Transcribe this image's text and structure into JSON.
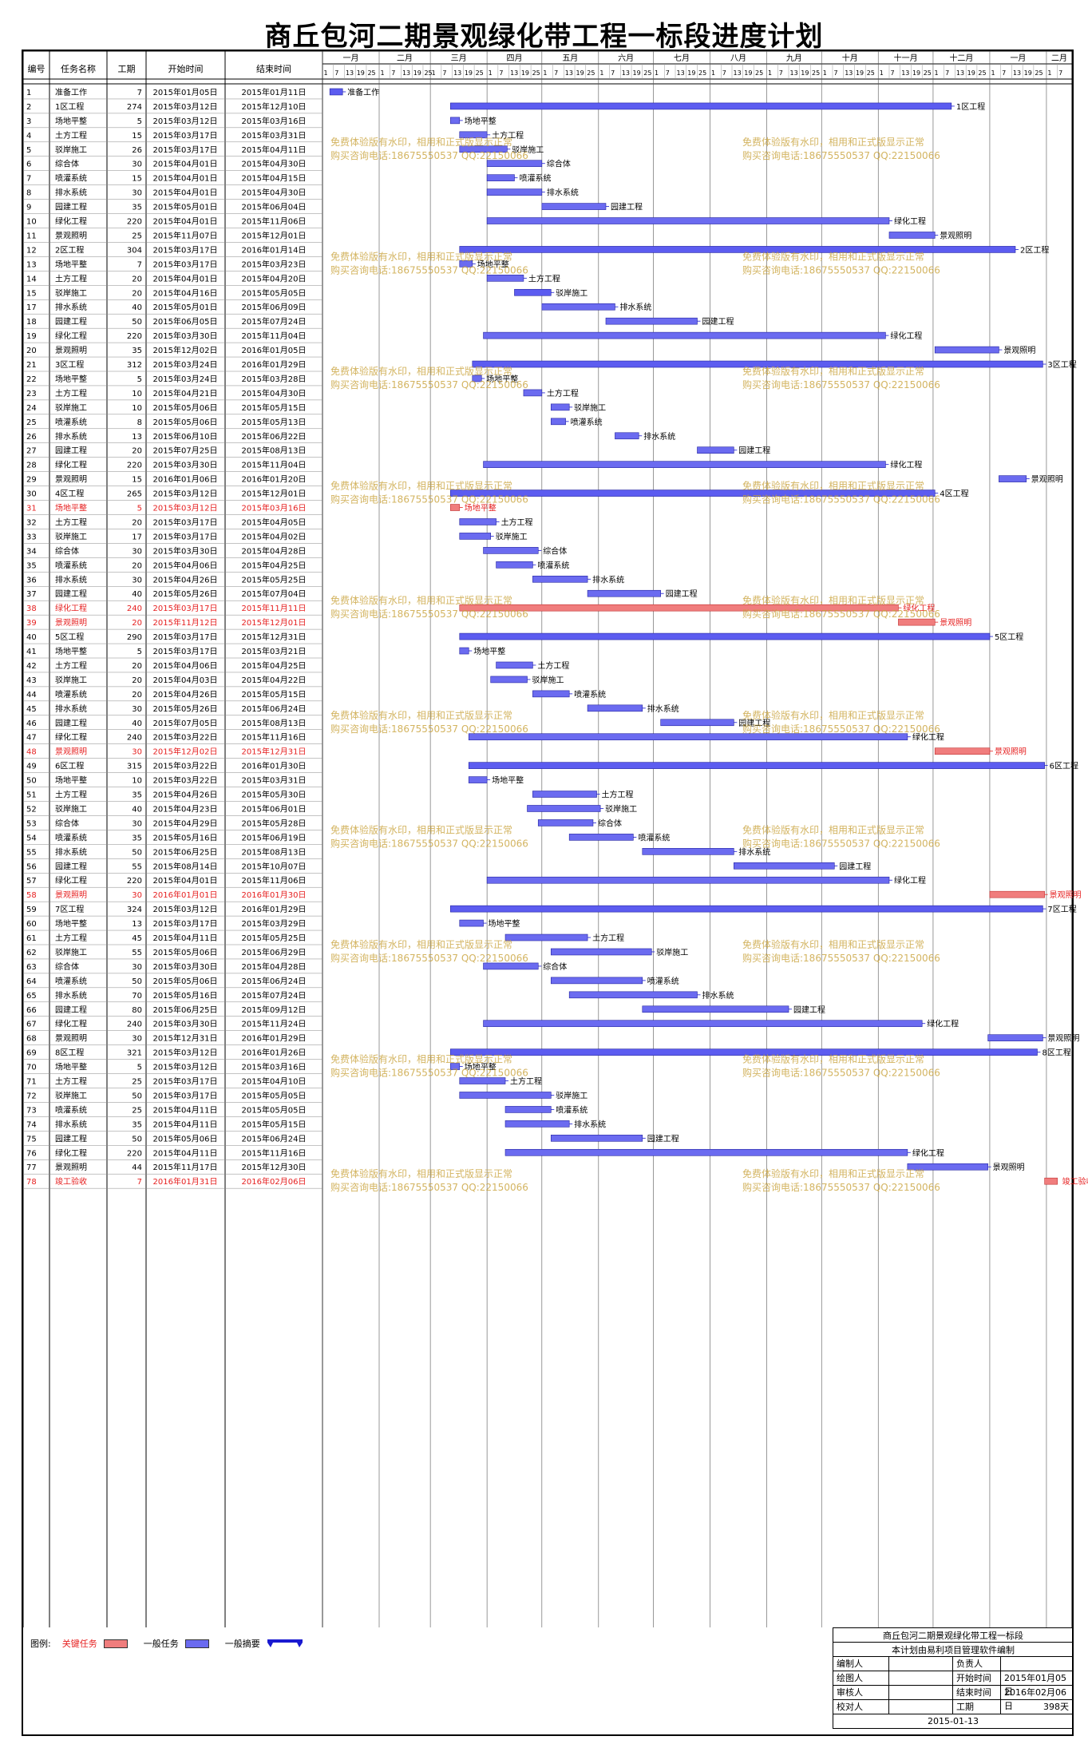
{
  "title": "商丘包河二期景观绿化带工程一标段进度计划",
  "headers": {
    "id": "编号",
    "name": "任务名称",
    "dur": "工期",
    "start": "开始时间",
    "end": "结束时间"
  },
  "timeline": {
    "months": [
      "一月",
      "二月",
      "三月",
      "四月",
      "五月",
      "六月",
      "七月",
      "八月",
      "九月",
      "十月",
      "十一月",
      "十二月",
      "一月",
      "二月"
    ],
    "day_ticks": [
      "1",
      "7",
      "13",
      "19",
      "25"
    ],
    "start_date": "2015-01-01",
    "end_date": "2016-02-15"
  },
  "colors": {
    "critical": "#f07d7d",
    "normal": "#6b6bf0",
    "summary": "#5c5cf0",
    "link_normal": "#1a1ad0",
    "link_critical": "#e62020",
    "critical_text": "#e62020",
    "watermark": "#c9a23a"
  },
  "watermark": {
    "line1": "免费体验版有水印，相用和正式版显示正常",
    "line2": "购买咨询电话:18675550537 QQ:22150066"
  },
  "legend": {
    "label": "图例:",
    "critical": "关键任务",
    "normal": "一般任务",
    "summary": "一般摘要"
  },
  "info": {
    "project": "商丘包河二期景观绿化带工程一标段",
    "software": "本计划由易利项目管理软件编制",
    "editor_label": "编制人",
    "editor": "",
    "owner_label": "负责人",
    "owner": "",
    "drawer_label": "绘图人",
    "drawer": "",
    "start_label": "开始时间",
    "start": "2015年01月05日",
    "reviewer_label": "审核人",
    "reviewer": "",
    "end_label": "结束时间",
    "end": "2016年02月06日",
    "checker_label": "校对人",
    "checker": "",
    "duration_label": "工期",
    "duration": "398天",
    "date": "2015-01-13"
  },
  "chart_data": {
    "type": "gantt",
    "title": "商丘包河二期景观绿化带工程一标段进度计划",
    "tasks": [
      {
        "id": 1,
        "name": "准备工作",
        "dur": 7,
        "start": "2015年01月05日",
        "end": "2015年01月11日",
        "kind": "summary"
      },
      {
        "id": 2,
        "name": "1区工程",
        "dur": 274,
        "start": "2015年03月12日",
        "end": "2015年12月10日",
        "kind": "summary"
      },
      {
        "id": 3,
        "name": "场地平整",
        "dur": 5,
        "start": "2015年03月12日",
        "end": "2015年03月16日",
        "kind": "normal"
      },
      {
        "id": 4,
        "name": "土方工程",
        "dur": 15,
        "start": "2015年03月17日",
        "end": "2015年03月31日",
        "kind": "normal"
      },
      {
        "id": 5,
        "name": "驳岸施工",
        "dur": 26,
        "start": "2015年03月17日",
        "end": "2015年04月11日",
        "kind": "normal"
      },
      {
        "id": 6,
        "name": "综合体",
        "dur": 30,
        "start": "2015年04月01日",
        "end": "2015年04月30日",
        "kind": "normal"
      },
      {
        "id": 7,
        "name": "喷灌系统",
        "dur": 15,
        "start": "2015年04月01日",
        "end": "2015年04月15日",
        "kind": "normal"
      },
      {
        "id": 8,
        "name": "排水系统",
        "dur": 30,
        "start": "2015年04月01日",
        "end": "2015年04月30日",
        "kind": "normal"
      },
      {
        "id": 9,
        "name": "园建工程",
        "dur": 35,
        "start": "2015年05月01日",
        "end": "2015年06月04日",
        "kind": "normal"
      },
      {
        "id": 10,
        "name": "绿化工程",
        "dur": 220,
        "start": "2015年04月01日",
        "end": "2015年11月06日",
        "kind": "normal"
      },
      {
        "id": 11,
        "name": "景观照明",
        "dur": 25,
        "start": "2015年11月07日",
        "end": "2015年12月01日",
        "kind": "normal"
      },
      {
        "id": 12,
        "name": "2区工程",
        "dur": 304,
        "start": "2015年03月17日",
        "end": "2016年01月14日",
        "kind": "summary"
      },
      {
        "id": 13,
        "name": "场地平整",
        "dur": 7,
        "start": "2015年03月17日",
        "end": "2015年03月23日",
        "kind": "normal"
      },
      {
        "id": 14,
        "name": "土方工程",
        "dur": 20,
        "start": "2015年04月01日",
        "end": "2015年04月20日",
        "kind": "normal"
      },
      {
        "id": 15,
        "name": "驳岸施工",
        "dur": 20,
        "start": "2015年04月16日",
        "end": "2015年05月05日",
        "kind": "summary"
      },
      {
        "id": 17,
        "name": "排水系统",
        "dur": 40,
        "start": "2015年05月01日",
        "end": "2015年06月09日",
        "kind": "normal"
      },
      {
        "id": 18,
        "name": "园建工程",
        "dur": 50,
        "start": "2015年06月05日",
        "end": "2015年07月24日",
        "kind": "normal"
      },
      {
        "id": 19,
        "name": "绿化工程",
        "dur": 220,
        "start": "2015年03月30日",
        "end": "2015年11月04日",
        "kind": "normal"
      },
      {
        "id": 20,
        "name": "景观照明",
        "dur": 35,
        "start": "2015年12月02日",
        "end": "2016年01月05日",
        "kind": "normal"
      },
      {
        "id": 21,
        "name": "3区工程",
        "dur": 312,
        "start": "2015年03月24日",
        "end": "2016年01月29日",
        "kind": "summary"
      },
      {
        "id": 22,
        "name": "场地平整",
        "dur": 5,
        "start": "2015年03月24日",
        "end": "2015年03月28日",
        "kind": "normal"
      },
      {
        "id": 23,
        "name": "土方工程",
        "dur": 10,
        "start": "2015年04月21日",
        "end": "2015年04月30日",
        "kind": "normal"
      },
      {
        "id": 24,
        "name": "驳岸施工",
        "dur": 10,
        "start": "2015年05月06日",
        "end": "2015年05月15日",
        "kind": "normal"
      },
      {
        "id": 25,
        "name": "喷灌系统",
        "dur": 8,
        "start": "2015年05月06日",
        "end": "2015年05月13日",
        "kind": "normal"
      },
      {
        "id": 26,
        "name": "排水系统",
        "dur": 13,
        "start": "2015年06月10日",
        "end": "2015年06月22日",
        "kind": "normal"
      },
      {
        "id": 27,
        "name": "园建工程",
        "dur": 20,
        "start": "2015年07月25日",
        "end": "2015年08月13日",
        "kind": "normal"
      },
      {
        "id": 28,
        "name": "绿化工程",
        "dur": 220,
        "start": "2015年03月30日",
        "end": "2015年11月04日",
        "kind": "normal"
      },
      {
        "id": 29,
        "name": "景观照明",
        "dur": 15,
        "start": "2016年01月06日",
        "end": "2016年01月20日",
        "kind": "normal"
      },
      {
        "id": 30,
        "name": "4区工程",
        "dur": 265,
        "start": "2015年03月12日",
        "end": "2015年12月01日",
        "kind": "summary"
      },
      {
        "id": 31,
        "name": "场地平整",
        "dur": 5,
        "start": "2015年03月12日",
        "end": "2015年03月16日",
        "kind": "critical"
      },
      {
        "id": 32,
        "name": "土方工程",
        "dur": 20,
        "start": "2015年03月17日",
        "end": "2015年04月05日",
        "kind": "normal"
      },
      {
        "id": 33,
        "name": "驳岸施工",
        "dur": 17,
        "start": "2015年03月17日",
        "end": "2015年04月02日",
        "kind": "normal"
      },
      {
        "id": 34,
        "name": "综合体",
        "dur": 30,
        "start": "2015年03月30日",
        "end": "2015年04月28日",
        "kind": "normal"
      },
      {
        "id": 35,
        "name": "喷灌系统",
        "dur": 20,
        "start": "2015年04月06日",
        "end": "2015年04月25日",
        "kind": "normal"
      },
      {
        "id": 36,
        "name": "排水系统",
        "dur": 30,
        "start": "2015年04月26日",
        "end": "2015年05月25日",
        "kind": "normal"
      },
      {
        "id": 37,
        "name": "园建工程",
        "dur": 40,
        "start": "2015年05月26日",
        "end": "2015年07月04日",
        "kind": "normal"
      },
      {
        "id": 38,
        "name": "绿化工程",
        "dur": 240,
        "start": "2015年03月17日",
        "end": "2015年11月11日",
        "kind": "critical"
      },
      {
        "id": 39,
        "name": "景观照明",
        "dur": 20,
        "start": "2015年11月12日",
        "end": "2015年12月01日",
        "kind": "critical"
      },
      {
        "id": 40,
        "name": "5区工程",
        "dur": 290,
        "start": "2015年03月17日",
        "end": "2015年12月31日",
        "kind": "summary"
      },
      {
        "id": 41,
        "name": "场地平整",
        "dur": 5,
        "start": "2015年03月17日",
        "end": "2015年03月21日",
        "kind": "normal"
      },
      {
        "id": 42,
        "name": "土方工程",
        "dur": 20,
        "start": "2015年04月06日",
        "end": "2015年04月25日",
        "kind": "normal"
      },
      {
        "id": 43,
        "name": "驳岸施工",
        "dur": 20,
        "start": "2015年04月03日",
        "end": "2015年04月22日",
        "kind": "normal"
      },
      {
        "id": 44,
        "name": "喷灌系统",
        "dur": 20,
        "start": "2015年04月26日",
        "end": "2015年05月15日",
        "kind": "normal"
      },
      {
        "id": 45,
        "name": "排水系统",
        "dur": 30,
        "start": "2015年05月26日",
        "end": "2015年06月24日",
        "kind": "normal"
      },
      {
        "id": 46,
        "name": "园建工程",
        "dur": 40,
        "start": "2015年07月05日",
        "end": "2015年08月13日",
        "kind": "normal"
      },
      {
        "id": 47,
        "name": "绿化工程",
        "dur": 240,
        "start": "2015年03月22日",
        "end": "2015年11月16日",
        "kind": "normal"
      },
      {
        "id": 48,
        "name": "景观照明",
        "dur": 30,
        "start": "2015年12月02日",
        "end": "2015年12月31日",
        "kind": "critical"
      },
      {
        "id": 49,
        "name": "6区工程",
        "dur": 315,
        "start": "2015年03月22日",
        "end": "2016年01月30日",
        "kind": "summary"
      },
      {
        "id": 50,
        "name": "场地平整",
        "dur": 10,
        "start": "2015年03月22日",
        "end": "2015年03月31日",
        "kind": "normal"
      },
      {
        "id": 51,
        "name": "土方工程",
        "dur": 35,
        "start": "2015年04月26日",
        "end": "2015年05月30日",
        "kind": "normal"
      },
      {
        "id": 52,
        "name": "驳岸施工",
        "dur": 40,
        "start": "2015年04月23日",
        "end": "2015年06月01日",
        "kind": "normal"
      },
      {
        "id": 53,
        "name": "综合体",
        "dur": 30,
        "start": "2015年04月29日",
        "end": "2015年05月28日",
        "kind": "normal"
      },
      {
        "id": 54,
        "name": "喷灌系统",
        "dur": 35,
        "start": "2015年05月16日",
        "end": "2015年06月19日",
        "kind": "normal"
      },
      {
        "id": 55,
        "name": "排水系统",
        "dur": 50,
        "start": "2015年06月25日",
        "end": "2015年08月13日",
        "kind": "normal"
      },
      {
        "id": 56,
        "name": "园建工程",
        "dur": 55,
        "start": "2015年08月14日",
        "end": "2015年10月07日",
        "kind": "normal"
      },
      {
        "id": 57,
        "name": "绿化工程",
        "dur": 220,
        "start": "2015年04月01日",
        "end": "2015年11月06日",
        "kind": "normal"
      },
      {
        "id": 58,
        "name": "景观照明",
        "dur": 30,
        "start": "2016年01月01日",
        "end": "2016年01月30日",
        "kind": "critical"
      },
      {
        "id": 59,
        "name": "7区工程",
        "dur": 324,
        "start": "2015年03月12日",
        "end": "2016年01月29日",
        "kind": "summary"
      },
      {
        "id": 60,
        "name": "场地平整",
        "dur": 13,
        "start": "2015年03月17日",
        "end": "2015年03月29日",
        "kind": "normal"
      },
      {
        "id": 61,
        "name": "土方工程",
        "dur": 45,
        "start": "2015年04月11日",
        "end": "2015年05月25日",
        "kind": "normal"
      },
      {
        "id": 62,
        "name": "驳岸施工",
        "dur": 55,
        "start": "2015年05月06日",
        "end": "2015年06月29日",
        "kind": "normal"
      },
      {
        "id": 63,
        "name": "综合体",
        "dur": 30,
        "start": "2015年03月30日",
        "end": "2015年04月28日",
        "kind": "normal"
      },
      {
        "id": 64,
        "name": "喷灌系统",
        "dur": 50,
        "start": "2015年05月06日",
        "end": "2015年06月24日",
        "kind": "normal"
      },
      {
        "id": 65,
        "name": "排水系统",
        "dur": 70,
        "start": "2015年05月16日",
        "end": "2015年07月24日",
        "kind": "normal"
      },
      {
        "id": 66,
        "name": "园建工程",
        "dur": 80,
        "start": "2015年06月25日",
        "end": "2015年09月12日",
        "kind": "normal"
      },
      {
        "id": 67,
        "name": "绿化工程",
        "dur": 240,
        "start": "2015年03月30日",
        "end": "2015年11月24日",
        "kind": "normal"
      },
      {
        "id": 68,
        "name": "景观照明",
        "dur": 30,
        "start": "2015年12月31日",
        "end": "2016年01月29日",
        "kind": "normal"
      },
      {
        "id": 69,
        "name": "8区工程",
        "dur": 321,
        "start": "2015年03月12日",
        "end": "2016年01月26日",
        "kind": "summary"
      },
      {
        "id": 70,
        "name": "场地平整",
        "dur": 5,
        "start": "2015年03月12日",
        "end": "2015年03月16日",
        "kind": "normal"
      },
      {
        "id": 71,
        "name": "土方工程",
        "dur": 25,
        "start": "2015年03月17日",
        "end": "2015年04月10日",
        "kind": "normal"
      },
      {
        "id": 72,
        "name": "驳岸施工",
        "dur": 50,
        "start": "2015年03月17日",
        "end": "2015年05月05日",
        "kind": "normal"
      },
      {
        "id": 73,
        "name": "喷灌系统",
        "dur": 25,
        "start": "2015年04月11日",
        "end": "2015年05月05日",
        "kind": "normal"
      },
      {
        "id": 74,
        "name": "排水系统",
        "dur": 35,
        "start": "2015年04月11日",
        "end": "2015年05月15日",
        "kind": "normal"
      },
      {
        "id": 75,
        "name": "园建工程",
        "dur": 50,
        "start": "2015年05月06日",
        "end": "2015年06月24日",
        "kind": "normal"
      },
      {
        "id": 76,
        "name": "绿化工程",
        "dur": 220,
        "start": "2015年04月11日",
        "end": "2015年11月16日",
        "kind": "normal"
      },
      {
        "id": 77,
        "name": "景观照明",
        "dur": 44,
        "start": "2015年11月17日",
        "end": "2015年12月30日",
        "kind": "normal"
      },
      {
        "id": 78,
        "name": "竣工验收",
        "dur": 7,
        "start": "2016年01月31日",
        "end": "2016年02月06日",
        "kind": "critical"
      }
    ]
  }
}
